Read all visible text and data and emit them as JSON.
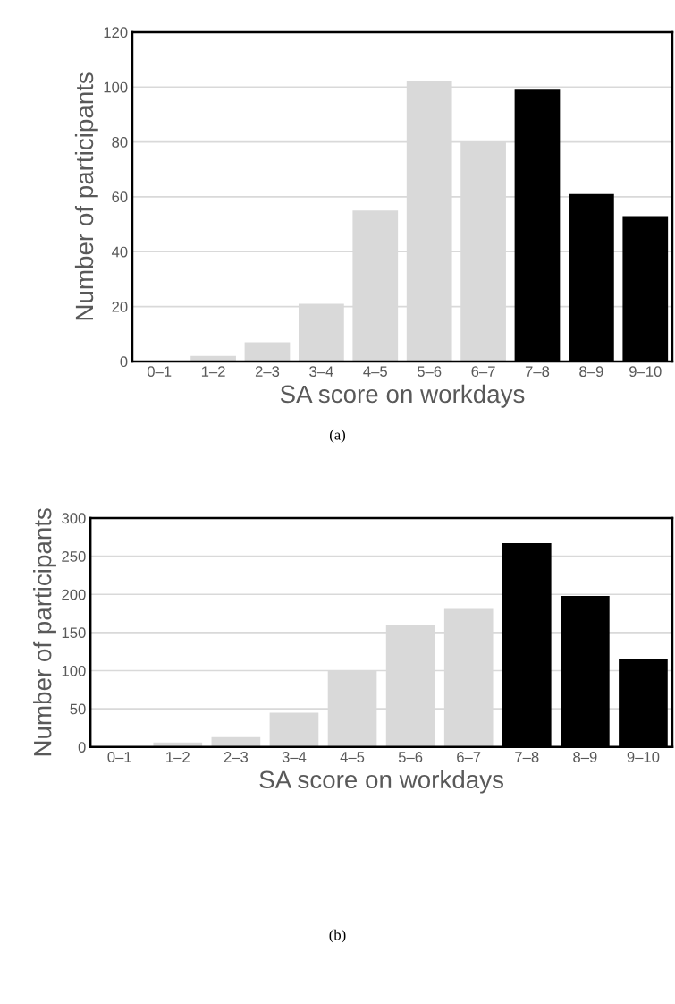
{
  "chart_data": [
    {
      "type": "bar",
      "title": "(a)",
      "xlabel": "SA score on workdays",
      "ylabel": "Number of participants",
      "categories": [
        "0–1",
        "1–2",
        "2–3",
        "3–4",
        "4–5",
        "5–6",
        "6–7",
        "7–8",
        "8–9",
        "9–10"
      ],
      "values": [
        0,
        2,
        7,
        21,
        55,
        102,
        80,
        99,
        61,
        53
      ],
      "colors": [
        "#d9d9d9",
        "#d9d9d9",
        "#d9d9d9",
        "#d9d9d9",
        "#d9d9d9",
        "#d9d9d9",
        "#d9d9d9",
        "#000000",
        "#000000",
        "#000000"
      ],
      "ylim": [
        0,
        120
      ],
      "yticks": [
        0,
        20,
        40,
        60,
        80,
        100,
        120
      ],
      "grid": "y"
    },
    {
      "type": "bar",
      "title": "(b)",
      "xlabel": "SA score on workdays",
      "ylabel": "Number of participants",
      "categories": [
        "0–1",
        "1–2",
        "2–3",
        "3–4",
        "4–5",
        "5–6",
        "6–7",
        "7–8",
        "8–9",
        "9–10"
      ],
      "values": [
        1,
        6,
        13,
        45,
        100,
        160,
        181,
        267,
        198,
        115
      ],
      "colors": [
        "#d9d9d9",
        "#d9d9d9",
        "#d9d9d9",
        "#d9d9d9",
        "#d9d9d9",
        "#d9d9d9",
        "#d9d9d9",
        "#000000",
        "#000000",
        "#000000"
      ],
      "ylim": [
        0,
        300
      ],
      "yticks": [
        0,
        50,
        100,
        150,
        200,
        250,
        300
      ],
      "grid": "y"
    }
  ]
}
